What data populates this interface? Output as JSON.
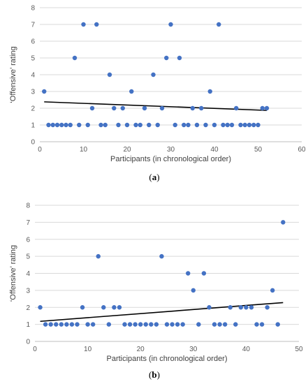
{
  "colors": {
    "point": "#4472C4",
    "trend": "#000000",
    "grid": "#d9d9d9"
  },
  "chart_data": [
    {
      "type": "scatter",
      "caption_label": "a",
      "xlabel": "Participants (in chronological order)",
      "ylabel": "‘Offensive’ rating",
      "xlim": [
        0,
        60
      ],
      "ylim": [
        0,
        8
      ],
      "xticks": [
        "0",
        "10",
        "20",
        "30",
        "40",
        "50",
        "60"
      ],
      "yticks": [
        "0",
        "1",
        "2",
        "3",
        "4",
        "5",
        "6",
        "7",
        "8"
      ],
      "grid": "horizontal",
      "legend": "none",
      "x": [
        1,
        2,
        3,
        4,
        5,
        6,
        7,
        8,
        9,
        10,
        11,
        12,
        13,
        14,
        15,
        16,
        17,
        18,
        19,
        20,
        21,
        22,
        23,
        24,
        25,
        26,
        27,
        28,
        29,
        30,
        31,
        32,
        33,
        34,
        35,
        36,
        37,
        38,
        39,
        40,
        41,
        42,
        43,
        44,
        45,
        46,
        47,
        48,
        49,
        50,
        51,
        52
      ],
      "y": [
        3,
        1,
        1,
        1,
        1,
        1,
        1,
        5,
        1,
        7,
        1,
        2,
        7,
        1,
        1,
        4,
        2,
        1,
        2,
        1,
        3,
        1,
        1,
        2,
        1,
        4,
        1,
        2,
        5,
        7,
        1,
        5,
        1,
        1,
        2,
        1,
        2,
        1,
        3,
        1,
        7,
        1,
        1,
        1,
        2,
        1,
        1,
        1,
        1,
        1,
        2,
        2
      ],
      "trendline": {
        "x": [
          1,
          52
        ],
        "y": [
          2.38,
          1.87
        ]
      }
    },
    {
      "type": "scatter",
      "caption_label": "b",
      "xlabel": "Participants (in chronological order)",
      "ylabel": "‘Offensive’ rating",
      "xlim": [
        0,
        50
      ],
      "ylim": [
        0,
        8
      ],
      "xticks": [
        "0",
        "10",
        "20",
        "30",
        "40",
        "50"
      ],
      "yticks": [
        "0",
        "1",
        "2",
        "3",
        "4",
        "5",
        "6",
        "7",
        "8"
      ],
      "grid": "horizontal",
      "legend": "none",
      "x": [
        1,
        2,
        3,
        4,
        5,
        6,
        7,
        8,
        9,
        10,
        11,
        12,
        13,
        14,
        15,
        16,
        17,
        18,
        19,
        20,
        21,
        22,
        23,
        24,
        25,
        26,
        27,
        28,
        29,
        30,
        31,
        32,
        33,
        34,
        35,
        36,
        37,
        38,
        39,
        40,
        41,
        42,
        43,
        44,
        45,
        46,
        47
      ],
      "y": [
        2,
        1,
        1,
        1,
        1,
        1,
        1,
        1,
        2,
        1,
        1,
        5,
        2,
        1,
        2,
        2,
        1,
        1,
        1,
        1,
        1,
        1,
        1,
        5,
        1,
        1,
        1,
        1,
        4,
        3,
        1,
        4,
        2,
        1,
        1,
        1,
        2,
        1,
        2,
        2,
        2,
        1,
        1,
        2,
        3,
        1,
        7
      ],
      "trendline": {
        "x": [
          1,
          47
        ],
        "y": [
          1.18,
          2.28
        ]
      }
    }
  ]
}
